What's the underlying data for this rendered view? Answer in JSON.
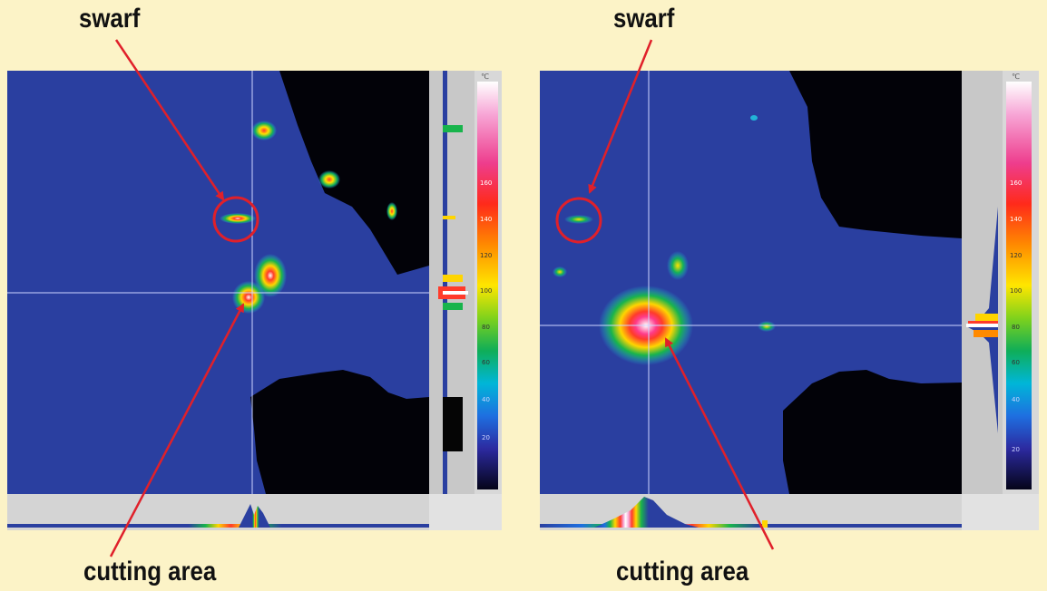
{
  "annotations": {
    "left_swarf": "swarf",
    "left_cutting": "cutting area",
    "right_swarf": "swarf",
    "right_cutting": "cutting area"
  },
  "scale": {
    "unit": "℃",
    "ticks": [
      "20",
      "40",
      "60",
      "80",
      "100",
      "120",
      "140",
      "160"
    ]
  },
  "colors": {
    "background": "#fcf3c7",
    "cold_field": "#2a3fa0",
    "shadow": "#020208",
    "arrow": "#e0202a",
    "crosshair": "#cfd6ff"
  }
}
